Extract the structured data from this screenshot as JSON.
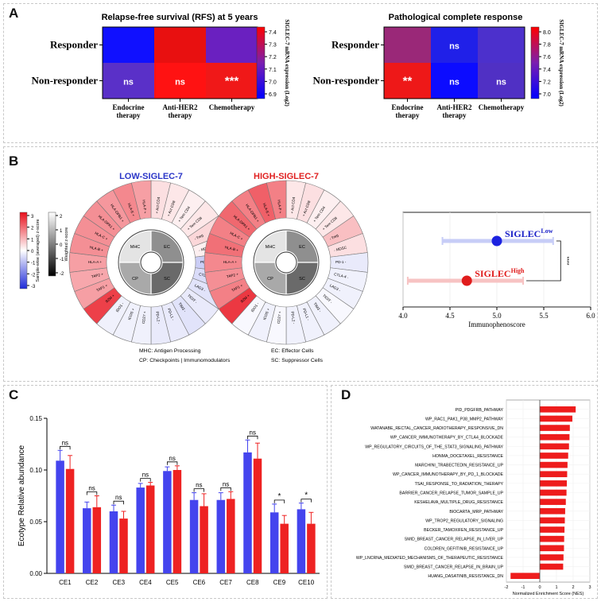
{
  "panels": {
    "a": "A",
    "b": "B",
    "c": "C",
    "d": "D"
  },
  "colors": {
    "red": "#ee2222",
    "blue": "#4444ee",
    "violet": "#5a2fc4"
  },
  "panel_a": {
    "left": {
      "title": "Relapse-free survival (RFS) at 5 years",
      "rows": [
        "Responder",
        "Non-responder"
      ],
      "cols": [
        "Endocrine therapy",
        "Anti-HER2 therapy",
        "Chemotherapy"
      ],
      "colors": [
        [
          "#1010ff",
          "#e81010",
          "#6a20c0"
        ],
        [
          "#5a30c8",
          "#ff1212",
          "#f01818"
        ]
      ],
      "cell_text": [
        [
          "",
          "",
          ""
        ],
        [
          "ns",
          "ns",
          "***"
        ]
      ],
      "colorbar_ticks": [
        "7.4",
        "7.3",
        "7.2",
        "7.1",
        "7.0",
        "6.9"
      ],
      "colorbar_label": "SIGLEC-7 mRNA expression (Log2)"
    },
    "right": {
      "title": "Pathological complete response",
      "rows": [
        "Responder",
        "Non-responder"
      ],
      "cols": [
        "Endocrine therapy",
        "Anti-HER2 therapy",
        "Chemotherapy"
      ],
      "colors": [
        [
          "#9a2878",
          "#2020e8",
          "#4c30cc"
        ],
        [
          "#ee1818",
          "#0c0cff",
          "#5030c4"
        ]
      ],
      "cell_text": [
        [
          "",
          "ns",
          ""
        ],
        [
          "**",
          "ns",
          "ns"
        ]
      ],
      "colorbar_ticks": [
        "8.0",
        "7.8",
        "7.6",
        "7.4",
        "7.2",
        "7.0"
      ],
      "colorbar_label": "SIGLEC-7 mRNA expression (Log2)"
    }
  },
  "panel_b": {
    "left_title": "LOW-SIGLEC-7",
    "right_title": "HIGH-SIGLEC-7",
    "inner_labels": [
      "MHC",
      "EC",
      "SC",
      "CP"
    ],
    "segments": [
      "+ Act CD4",
      "+ Act CD8",
      "+ Tem CD4",
      "+ Tem CD8",
      "- Treg",
      "- MDSC",
      "PD-1 -",
      "CTLA-4 -",
      "LAG3 -",
      "TIGIT -",
      "TIM3 -",
      "PD-L1 -",
      "PD-L2 -",
      "CD27 +",
      "ICOS +",
      "IDO1 -",
      "B2M +",
      "TAP1 +",
      "TAP2 +",
      "HLA-A +",
      "HLA-B +",
      "HLA-C +",
      "HLA-DPA1 +",
      "HLA-DPB1 +",
      "HLA-E +",
      "HLA-F +"
    ],
    "low_values": [
      0.4,
      0.3,
      0.2,
      0.3,
      0.5,
      0.2,
      -0.7,
      -0.5,
      -0.4,
      -0.3,
      -0.4,
      -0.3,
      -0.3,
      -0.2,
      -0.2,
      -0.2,
      2.4,
      1.2,
      1.1,
      1.2,
      1.4,
      1.4,
      1.4,
      1.3,
      1.5,
      1.2
    ],
    "high_values": [
      0.3,
      0.4,
      0.2,
      0.3,
      0.8,
      0.4,
      -0.3,
      -0.2,
      -0.2,
      -0.1,
      -0.2,
      -0.2,
      -0.2,
      -0.1,
      -0.2,
      -0.1,
      2.5,
      1.6,
      1.4,
      1.5,
      1.8,
      1.6,
      1.9,
      1.6,
      2.0,
      1.6
    ],
    "colorbar1_ticks": [
      "3",
      "2",
      "1",
      "0",
      "-1",
      "-2",
      "-3"
    ],
    "colorbar1_label": "Sample-wise (averaged) z-score",
    "colorbar2_ticks": [
      "2",
      "1",
      "0",
      "-1",
      "-2"
    ],
    "colorbar2_label": "Weighted z-score",
    "legend": [
      "MHC: Antigen Processing",
      "CP: Checkpoints | Immunomodulators",
      "EC: Effector Cells",
      "SC: Suppressor Cells"
    ]
  },
  "ips_label_low": "SIGLEC",
  "ips_sup_low": "Low",
  "ips_label_high": "SIGLEC",
  "ips_sup_high": "High",
  "ips_sig": "****",
  "chart_data": [
    {
      "type": "scatter",
      "title": "",
      "xlabel": "Immunophenoscore",
      "xlim": [
        4.0,
        6.0
      ],
      "x_ticks": [
        "4.0",
        "4.5",
        "5.0",
        "5.5",
        "6.0"
      ],
      "series": [
        {
          "name": "SIGLEC Low",
          "mean": 5.0,
          "lower": 4.42,
          "upper": 5.6
        },
        {
          "name": "SIGLEC High",
          "mean": 4.68,
          "lower": 4.05,
          "upper": 5.28
        }
      ]
    },
    {
      "type": "bar",
      "title": "",
      "xlabel": "",
      "ylabel": "Ecotype Relative abundance",
      "ylim": [
        0.0,
        0.15
      ],
      "y_ticks": [
        "0.00",
        "0.05",
        "0.10",
        "0.15"
      ],
      "categories": [
        "CE1",
        "CE2",
        "CE3",
        "CE4",
        "CE5",
        "CE6",
        "CE7",
        "CE8",
        "CE9",
        "CE10"
      ],
      "series": [
        {
          "name": "Low",
          "values": [
            0.109,
            0.063,
            0.06,
            0.083,
            0.099,
            0.071,
            0.071,
            0.117,
            0.059,
            0.062
          ],
          "errors": [
            0.01,
            0.006,
            0.006,
            0.004,
            0.004,
            0.007,
            0.007,
            0.012,
            0.008,
            0.006
          ]
        },
        {
          "name": "High",
          "values": [
            0.101,
            0.064,
            0.053,
            0.085,
            0.1,
            0.065,
            0.072,
            0.111,
            0.048,
            0.048
          ],
          "errors": [
            0.013,
            0.011,
            0.007,
            0.003,
            0.004,
            0.012,
            0.007,
            0.015,
            0.008,
            0.011
          ]
        }
      ],
      "significance": [
        "ns",
        "ns",
        "ns",
        "ns",
        "ns",
        "ns",
        "ns",
        "ns",
        "*",
        "*"
      ]
    },
    {
      "type": "bar",
      "title": "",
      "xlabel": "Normalized Enrichment Score (NES)",
      "xlim": [
        -2,
        3
      ],
      "x_ticks": [
        "-2",
        "-1",
        "0",
        "1",
        "2",
        "3"
      ],
      "categories": [
        "PID_PDGFRB_PATHWAY",
        "WP_RAC1_PAK1_P38_MMP2_PATHWAY",
        "WATANABE_RECTAL_CANCER_RADIOTHERAPY_RESPONSIVE_DN",
        "WP_CANCER_IMMUNOTHERAPY_BY_CTLA4_BLOCKADE",
        "WP_REGULATORY_CIRCUITS_OF_THE_STAT3_SIGNALING_PATHWAY",
        "HONMA_DOCETAXEL_RESISTANCE",
        "MARCHINI_TRABECTEDIN_RESISTANCE_UP",
        "WP_CANCER_IMMUNOTHERAPY_BY_PD_1_BLOCKADE",
        "TSAI_RESPONSE_TO_RADIATION_THERAPY",
        "BARRIER_CANCER_RELAPSE_TUMOR_SAMPLE_UP",
        "KESHELAVA_MULTIPLE_DRUG_RESISTANCE",
        "BIOCARTA_MRP_PATHWAY",
        "WP_TROP2_REGULATORY_SIGNALING",
        "BECKER_TAMOXIFEN_RESISTANCE_UP",
        "SMID_BREAST_CANCER_RELAPSE_IN_LIVER_UP",
        "COLDREN_GEFITINIB_RESISTANCE_UP",
        "WP_LNCRNA_MEDIATED_MECHANISMS_OF_THERAPEUTIC_RESISTANCE",
        "SMID_BREAST_CANCER_RELAPSE_IN_BRAIN_UP",
        "HUANG_DASATINIB_RESISTANCE_DN"
      ],
      "values": [
        2.15,
        1.95,
        1.8,
        1.78,
        1.75,
        1.7,
        1.66,
        1.64,
        1.62,
        1.6,
        1.56,
        1.52,
        1.5,
        1.48,
        1.46,
        1.45,
        1.42,
        1.4,
        -1.75
      ]
    }
  ]
}
